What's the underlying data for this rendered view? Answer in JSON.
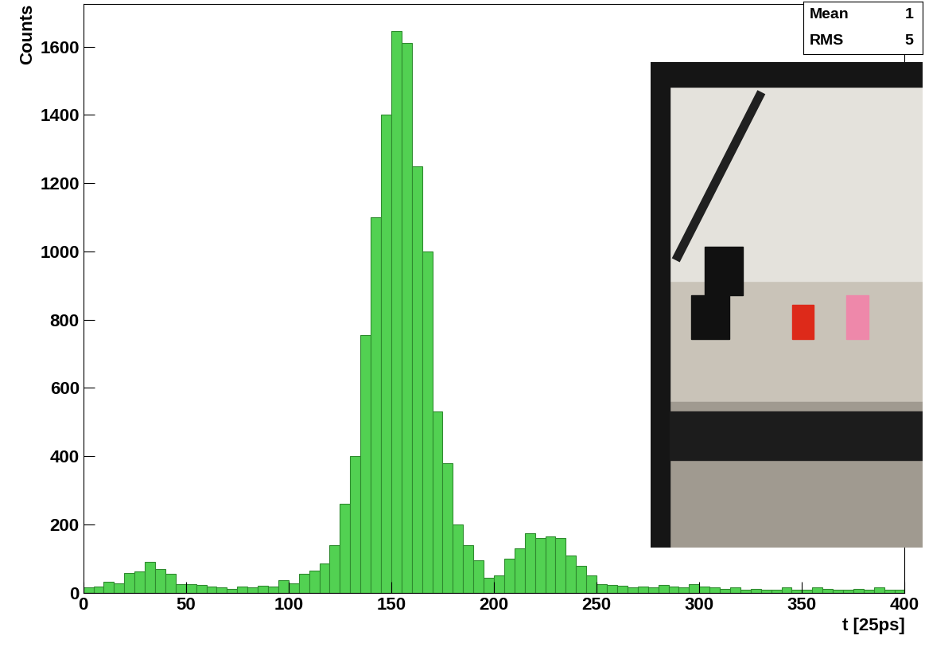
{
  "chart_data": {
    "type": "histogram",
    "x_label": "t [25ps]",
    "y_label": "Counts",
    "bins": [
      0,
      5,
      10,
      15,
      20,
      25,
      30,
      35,
      40,
      45,
      50,
      55,
      60,
      65,
      70,
      75,
      80,
      85,
      90,
      95,
      100,
      105,
      110,
      115,
      120,
      125,
      130,
      135,
      140,
      145,
      150,
      155,
      160,
      165,
      170,
      175,
      180,
      185,
      190,
      195,
      200,
      205,
      210,
      215,
      220,
      225,
      230,
      235,
      240,
      245,
      250,
      255,
      260,
      265,
      270,
      275,
      280,
      285,
      290,
      295,
      300,
      305,
      310,
      315,
      320,
      325,
      330,
      335,
      340,
      345,
      350,
      355,
      360,
      365,
      370,
      375,
      380,
      385,
      390,
      395,
      400
    ],
    "counts": [
      15,
      18,
      32,
      28,
      58,
      62,
      90,
      70,
      55,
      25,
      25,
      22,
      18,
      15,
      12,
      18,
      15,
      20,
      18,
      38,
      28,
      55,
      65,
      85,
      140,
      260,
      400,
      755,
      1100,
      1400,
      1645,
      1610,
      1250,
      1000,
      530,
      380,
      200,
      140,
      95,
      45,
      50,
      100,
      130,
      175,
      160,
      165,
      160,
      110,
      80,
      50,
      25,
      22,
      20,
      15,
      18,
      15,
      22,
      18,
      15,
      25,
      18,
      15,
      12,
      15,
      10,
      12,
      8,
      10,
      15,
      10,
      10,
      15,
      12,
      8,
      10,
      12,
      8,
      15,
      10,
      8
    ],
    "color": "#52d152",
    "xlim": [
      0,
      400
    ],
    "xticks": [
      0,
      50,
      100,
      150,
      200,
      250,
      300,
      350,
      400
    ],
    "ylim": [
      0,
      1725
    ],
    "yticks": [
      0,
      200,
      400,
      600,
      800,
      1000,
      1200,
      1400,
      1600
    ],
    "grid": false,
    "stats_box": [
      [
        "Mean",
        "1"
      ],
      [
        "RMS",
        "5"
      ]
    ]
  }
}
